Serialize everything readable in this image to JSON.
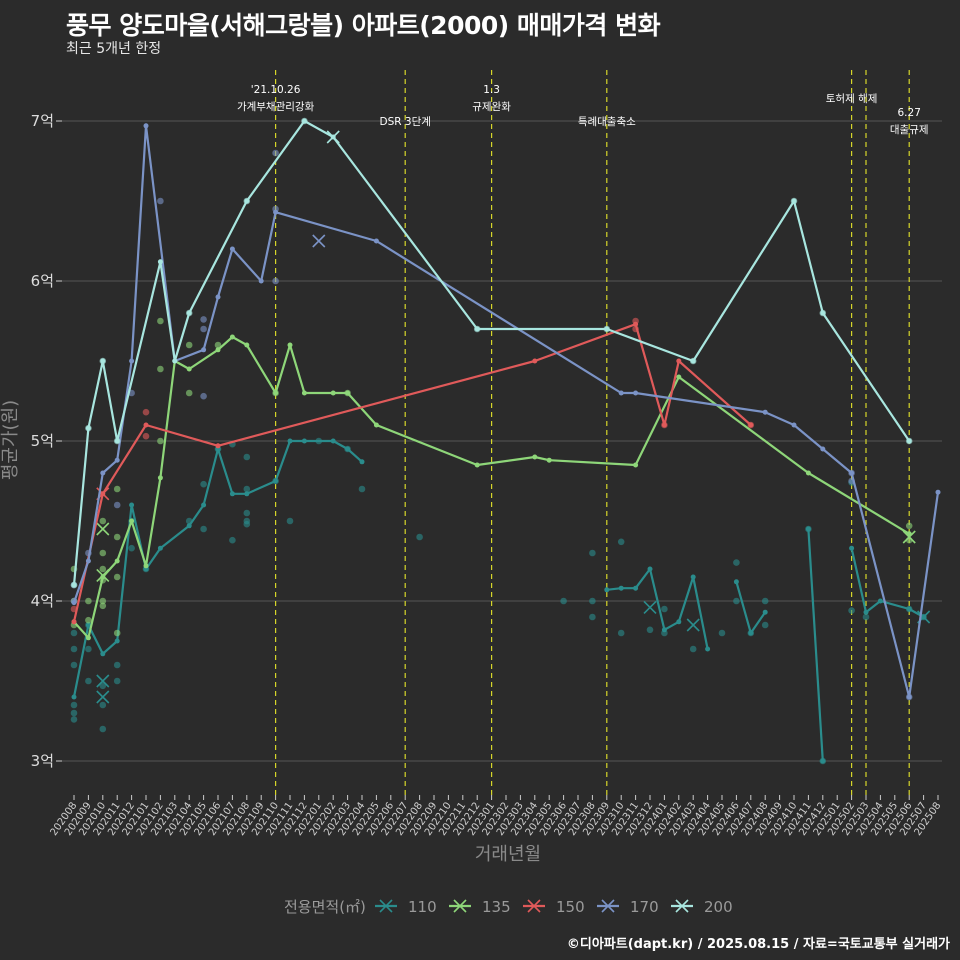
{
  "title": "풍무 양도마을(서해그랑블) 아파트(2000) 매매가격 변화",
  "subtitle": "최근 5개년 한정",
  "caption": "©디아파트(dapt.kr) / 2025.08.15 / 자료=국토교통부 실거래가",
  "chart_data": {
    "type": "line",
    "xlabel": "거래년월",
    "ylabel": "평균가(원)",
    "ylim": [
      2.85,
      7.4
    ],
    "yticks": [
      3,
      4,
      5,
      6,
      7
    ],
    "ytick_labels": [
      "3억",
      "4억",
      "5억",
      "6억",
      "7억"
    ],
    "months": [
      "202008",
      "202009",
      "202010",
      "202011",
      "202012",
      "202101",
      "202102",
      "202103",
      "202104",
      "202105",
      "202106",
      "202107",
      "202108",
      "202109",
      "202110",
      "202111",
      "202112",
      "202201",
      "202202",
      "202203",
      "202204",
      "202205",
      "202206",
      "202207",
      "202208",
      "202209",
      "202210",
      "202211",
      "202212",
      "202301",
      "202302",
      "202303",
      "202304",
      "202305",
      "202306",
      "202307",
      "202308",
      "202309",
      "202310",
      "202311",
      "202312",
      "202401",
      "202402",
      "202403",
      "202404",
      "202405",
      "202406",
      "202407",
      "202408",
      "202409",
      "202410",
      "202411",
      "202412",
      "202501",
      "202502",
      "202503",
      "202504",
      "202505",
      "202506",
      "202507",
      "202508"
    ],
    "legend_title": "전용면적(㎡)",
    "legend_position": "bottom",
    "grid": true,
    "series": [
      {
        "name": "110",
        "color": "#2a8c8c",
        "lines": [
          [
            [
              "202008",
              3.4
            ],
            [
              "202009",
              3.85
            ],
            [
              "202010",
              3.67
            ],
            [
              "202011",
              3.75
            ],
            [
              "202012",
              4.6
            ],
            [
              "202101",
              4.2
            ],
            [
              "202102",
              4.33
            ],
            [
              "202104",
              4.47
            ],
            [
              "202105",
              4.6
            ],
            [
              "202106",
              4.95
            ],
            [
              "202107",
              4.67
            ],
            [
              "202108",
              4.67
            ],
            [
              "202110",
              4.75
            ],
            [
              "202111",
              5.0
            ],
            [
              "202112",
              5.0
            ],
            [
              "202202",
              5.0
            ],
            [
              "202203",
              4.95
            ],
            [
              "202204",
              4.87
            ]
          ],
          [
            [
              "202309",
              4.07
            ],
            [
              "202310",
              4.08
            ],
            [
              "202311",
              4.08
            ],
            [
              "202312",
              4.2
            ],
            [
              "202401",
              3.82
            ],
            [
              "202402",
              3.87
            ],
            [
              "202403",
              4.15
            ],
            [
              "202404",
              3.7
            ]
          ],
          [
            [
              "202406",
              4.12
            ],
            [
              "202407",
              3.8
            ],
            [
              "202408",
              3.93
            ]
          ],
          [
            [
              "202411",
              4.45
            ],
            [
              "202412",
              3.0
            ]
          ],
          [
            [
              "202502",
              4.33
            ],
            [
              "202503",
              3.93
            ],
            [
              "202504",
              4.0
            ],
            [
              "202506",
              3.95
            ],
            [
              "202507",
              3.9
            ]
          ]
        ],
        "points": [
          [
            "202008",
            3.3
          ],
          [
            "202008",
            3.26
          ],
          [
            "202008",
            3.35
          ],
          [
            "202008",
            3.6
          ],
          [
            "202008",
            3.8
          ],
          [
            "202008",
            3.7
          ],
          [
            "202009",
            3.5
          ],
          [
            "202009",
            3.7
          ],
          [
            "202009",
            3.85
          ],
          [
            "202010",
            3.2
          ],
          [
            "202010",
            3.35
          ],
          [
            "202010",
            3.47
          ],
          [
            "202011",
            3.5
          ],
          [
            "202011",
            3.6
          ],
          [
            "202012",
            4.33
          ],
          [
            "202012",
            4.5
          ],
          [
            "202101",
            4.2
          ],
          [
            "202104",
            4.5
          ],
          [
            "202105",
            4.45
          ],
          [
            "202105",
            4.73
          ],
          [
            "202106",
            4.95
          ],
          [
            "202107",
            4.38
          ],
          [
            "202107",
            4.98
          ],
          [
            "202108",
            4.5
          ],
          [
            "202108",
            4.55
          ],
          [
            "202108",
            4.48
          ],
          [
            "202108",
            4.7
          ],
          [
            "202108",
            4.9
          ],
          [
            "202110",
            4.75
          ],
          [
            "202111",
            4.5
          ],
          [
            "202201",
            5.0
          ],
          [
            "202203",
            4.95
          ],
          [
            "202204",
            4.7
          ],
          [
            "202208",
            4.4
          ],
          [
            "202306",
            4.0
          ],
          [
            "202308",
            4.3
          ],
          [
            "202308",
            3.9
          ],
          [
            "202308",
            4.0
          ],
          [
            "202310",
            4.37
          ],
          [
            "202310",
            3.8
          ],
          [
            "202312",
            3.82
          ],
          [
            "202401",
            3.8
          ],
          [
            "202401",
            3.95
          ],
          [
            "202403",
            3.7
          ],
          [
            "202405",
            3.8
          ],
          [
            "202406",
            4.24
          ],
          [
            "202406",
            4.0
          ],
          [
            "202407",
            3.8
          ],
          [
            "202408",
            3.85
          ],
          [
            "202408",
            4.0
          ],
          [
            "202411",
            4.45
          ],
          [
            "202412",
            3.0
          ],
          [
            "202502",
            4.74
          ],
          [
            "202502",
            3.94
          ],
          [
            "202503",
            3.9
          ],
          [
            "202506",
            3.95
          ],
          [
            "202507",
            3.9
          ]
        ],
        "markers": [
          [
            "202010",
            3.5
          ],
          [
            "202010",
            3.4
          ],
          [
            "202312",
            3.96
          ],
          [
            "202403",
            3.85
          ],
          [
            "202507",
            3.9
          ]
        ]
      },
      {
        "name": "135",
        "color": "#8ed679",
        "lines": [
          [
            [
              "202008",
              3.87
            ],
            [
              "202009",
              3.77
            ],
            [
              "202010",
              4.15
            ],
            [
              "202011",
              4.25
            ],
            [
              "202012",
              4.5
            ],
            [
              "202101",
              4.22
            ],
            [
              "202102",
              4.77
            ],
            [
              "202103",
              5.5
            ],
            [
              "202104",
              5.45
            ],
            [
              "202106",
              5.57
            ],
            [
              "202107",
              5.65
            ],
            [
              "202108",
              5.6
            ],
            [
              "202110",
              5.3
            ],
            [
              "202111",
              5.6
            ],
            [
              "202112",
              5.3
            ],
            [
              "202202",
              5.3
            ],
            [
              "202203",
              5.3
            ],
            [
              "202205",
              5.1
            ],
            [
              "202212",
              4.85
            ],
            [
              "202304",
              4.9
            ],
            [
              "202305",
              4.88
            ],
            [
              "202311",
              4.85
            ],
            [
              "202402",
              5.4
            ],
            [
              "202411",
              4.8
            ],
            [
              "202506",
              4.42
            ]
          ]
        ],
        "points": [
          [
            "202008",
            4.2
          ],
          [
            "202008",
            4.0
          ],
          [
            "202008",
            3.85
          ],
          [
            "202009",
            4.0
          ],
          [
            "202009",
            3.88
          ],
          [
            "202010",
            4.5
          ],
          [
            "202010",
            4.2
          ],
          [
            "202010",
            4.3
          ],
          [
            "202010",
            4.13
          ],
          [
            "202010",
            4.0
          ],
          [
            "202010",
            3.97
          ],
          [
            "202011",
            4.7
          ],
          [
            "202011",
            4.4
          ],
          [
            "202011",
            4.15
          ],
          [
            "202011",
            3.8
          ],
          [
            "202102",
            5.0
          ],
          [
            "202102",
            5.45
          ],
          [
            "202102",
            5.75
          ],
          [
            "202104",
            5.3
          ],
          [
            "202104",
            5.6
          ],
          [
            "202106",
            5.6
          ],
          [
            "202110",
            5.3
          ],
          [
            "202203",
            5.3
          ],
          [
            "202506",
            4.47
          ],
          [
            "202506",
            4.38
          ]
        ],
        "markers": [
          [
            "202010",
            4.16
          ],
          [
            "202010",
            4.45
          ],
          [
            "202506",
            4.4
          ]
        ]
      },
      {
        "name": "150",
        "color": "#e05a5a",
        "lines": [
          [
            [
              "202008",
              3.87
            ],
            [
              "202010",
              4.67
            ],
            [
              "202101",
              5.1
            ],
            [
              "202106",
              4.97
            ],
            [
              "202304",
              5.5
            ],
            [
              "202311",
              5.73
            ],
            [
              "202401",
              5.1
            ],
            [
              "202402",
              5.5
            ],
            [
              "202407",
              5.1
            ]
          ]
        ],
        "points": [
          [
            "202008",
            3.95
          ],
          [
            "202101",
            5.03
          ],
          [
            "202101",
            5.18
          ],
          [
            "202311",
            5.75
          ],
          [
            "202311",
            5.7
          ],
          [
            "202401",
            5.1
          ],
          [
            "202407",
            5.1
          ]
        ],
        "markers": [
          [
            "202010",
            4.67
          ]
        ]
      },
      {
        "name": "170",
        "color": "#7b93c6",
        "lines": [
          [
            [
              "202008",
              3.99
            ],
            [
              "202009",
              4.25
            ],
            [
              "202010",
              4.8
            ],
            [
              "202011",
              4.88
            ],
            [
              "202012",
              5.5
            ],
            [
              "202101",
              6.97
            ],
            [
              "202103",
              5.5
            ],
            [
              "202105",
              5.57
            ],
            [
              "202106",
              5.9
            ],
            [
              "202107",
              6.2
            ],
            [
              "202109",
              6.0
            ],
            [
              "202110",
              6.43
            ],
            [
              "202205",
              6.25
            ],
            [
              "202310",
              5.3
            ],
            [
              "202311",
              5.3
            ],
            [
              "202408",
              5.18
            ],
            [
              "202410",
              5.1
            ],
            [
              "202412",
              4.95
            ],
            [
              "202502",
              4.8
            ],
            [
              "202506",
              3.4
            ],
            [
              "202508",
              4.68
            ]
          ]
        ],
        "points": [
          [
            "202008",
            4.0
          ],
          [
            "202008",
            4.1
          ],
          [
            "202009",
            4.3
          ],
          [
            "202011",
            4.6
          ],
          [
            "202012",
            5.3
          ],
          [
            "202102",
            6.5
          ],
          [
            "202105",
            5.7
          ],
          [
            "202105",
            5.76
          ],
          [
            "202105",
            5.28
          ],
          [
            "202110",
            6.8
          ],
          [
            "202110",
            6.45
          ],
          [
            "202110",
            6.0
          ],
          [
            "202502",
            4.8
          ],
          [
            "202502",
            4.75
          ],
          [
            "202506",
            3.4
          ]
        ],
        "markers": [
          [
            "202201",
            6.25
          ]
        ]
      },
      {
        "name": "200",
        "color": "#a8e6df",
        "lines": [
          [
            [
              "202008",
              4.1
            ],
            [
              "202009",
              5.08
            ],
            [
              "202010",
              5.5
            ],
            [
              "202011",
              5.0
            ],
            [
              "202102",
              6.12
            ],
            [
              "202103",
              5.5
            ],
            [
              "202104",
              5.8
            ],
            [
              "202108",
              6.5
            ],
            [
              "202112",
              7.0
            ],
            [
              "202202",
              6.9
            ],
            [
              "202212",
              5.7
            ],
            [
              "202309",
              5.7
            ],
            [
              "202403",
              5.5
            ],
            [
              "202410",
              6.5
            ],
            [
              "202412",
              5.8
            ],
            [
              "202506",
              5.0
            ]
          ]
        ],
        "points": [
          [
            "202008",
            4.1
          ],
          [
            "202009",
            5.08
          ],
          [
            "202010",
            5.5
          ],
          [
            "202011",
            5.0
          ],
          [
            "202104",
            5.8
          ],
          [
            "202108",
            6.5
          ],
          [
            "202112",
            7.0
          ],
          [
            "202212",
            5.7
          ],
          [
            "202309",
            5.7
          ],
          [
            "202403",
            5.5
          ],
          [
            "202410",
            6.5
          ],
          [
            "202412",
            5.8
          ],
          [
            "202506",
            5.0
          ]
        ],
        "markers": [
          [
            "202202",
            6.9
          ]
        ]
      }
    ],
    "events": [
      {
        "month": "202110",
        "lines": [
          "'21.10.26",
          "가계부채관리강화"
        ]
      },
      {
        "month": "202207",
        "lines": [
          "DSR 3단계"
        ]
      },
      {
        "month": "202301",
        "lines": [
          "1.3",
          "규제완화"
        ]
      },
      {
        "month": "202309",
        "lines": [
          "특례대출축소"
        ]
      },
      {
        "month": "202502",
        "lines": [
          "토허제 해제"
        ]
      },
      {
        "month": "202503",
        "lines": []
      },
      {
        "month": "202506",
        "lines": [
          "6.27",
          "대출규제"
        ]
      }
    ]
  }
}
